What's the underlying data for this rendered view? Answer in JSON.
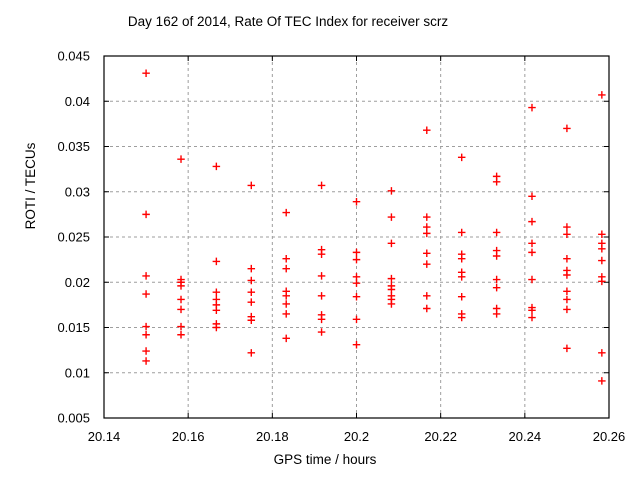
{
  "title": "Day 162 of 2014, Rate Of TEC Index for receiver scrz",
  "chart_data": {
    "type": "scatter",
    "title": "Day 162 of 2014, Rate Of TEC Index for receiver scrz",
    "xlabel": "GPS time / hours",
    "ylabel": "ROTI / TECUs",
    "xlim": [
      20.14,
      20.26
    ],
    "ylim": [
      0.005,
      0.045
    ],
    "xticks": [
      20.14,
      20.16,
      20.18,
      20.2,
      20.22,
      20.24,
      20.26
    ],
    "xtick_labels": [
      "20.14",
      "20.16",
      "20.18",
      "20.2",
      "20.22",
      "20.24",
      "20.26"
    ],
    "yticks": [
      0.005,
      0.01,
      0.015,
      0.02,
      0.025,
      0.03,
      0.035,
      0.04,
      0.045
    ],
    "ytick_labels": [
      "0.005",
      "0.01",
      "0.015",
      "0.02",
      "0.025",
      "0.03",
      "0.035",
      "0.04",
      "0.045"
    ],
    "grid": true,
    "legend": "none",
    "marker": {
      "shape": "plus",
      "color": "#ff0000",
      "size": 7.5,
      "stroke_width": 1.4
    },
    "frame_color": "#000000",
    "grid_color": "#9e9e9e",
    "points": [
      [
        20.15,
        0.0431
      ],
      [
        20.15,
        0.0275
      ],
      [
        20.15,
        0.0207
      ],
      [
        20.15,
        0.0187
      ],
      [
        20.15,
        0.0151
      ],
      [
        20.15,
        0.0142
      ],
      [
        20.15,
        0.0124
      ],
      [
        20.15,
        0.0113
      ],
      [
        20.1583,
        0.0336
      ],
      [
        20.1583,
        0.0203
      ],
      [
        20.1583,
        0.02
      ],
      [
        20.1583,
        0.0196
      ],
      [
        20.1583,
        0.0181
      ],
      [
        20.1583,
        0.017
      ],
      [
        20.1583,
        0.0151
      ],
      [
        20.1583,
        0.0142
      ],
      [
        20.1667,
        0.0328
      ],
      [
        20.1667,
        0.0223
      ],
      [
        20.1667,
        0.0189
      ],
      [
        20.1667,
        0.0181
      ],
      [
        20.1667,
        0.0175
      ],
      [
        20.1667,
        0.0169
      ],
      [
        20.1667,
        0.0154
      ],
      [
        20.1667,
        0.015
      ],
      [
        20.175,
        0.0307
      ],
      [
        20.175,
        0.0215
      ],
      [
        20.175,
        0.0202
      ],
      [
        20.175,
        0.0189
      ],
      [
        20.175,
        0.0178
      ],
      [
        20.175,
        0.0162
      ],
      [
        20.175,
        0.0158
      ],
      [
        20.175,
        0.0122
      ],
      [
        20.1833,
        0.0277
      ],
      [
        20.1833,
        0.0226
      ],
      [
        20.1833,
        0.0215
      ],
      [
        20.1833,
        0.019
      ],
      [
        20.1833,
        0.0185
      ],
      [
        20.1833,
        0.0176
      ],
      [
        20.1833,
        0.0165
      ],
      [
        20.1833,
        0.0138
      ],
      [
        20.1917,
        0.0307
      ],
      [
        20.1917,
        0.0236
      ],
      [
        20.1917,
        0.0231
      ],
      [
        20.1917,
        0.0207
      ],
      [
        20.1917,
        0.0185
      ],
      [
        20.1917,
        0.0164
      ],
      [
        20.1917,
        0.0159
      ],
      [
        20.1917,
        0.0145
      ],
      [
        20.2,
        0.0289
      ],
      [
        20.2,
        0.0233
      ],
      [
        20.2,
        0.0225
      ],
      [
        20.2,
        0.0206
      ],
      [
        20.2,
        0.0199
      ],
      [
        20.2,
        0.0184
      ],
      [
        20.2,
        0.0159
      ],
      [
        20.2,
        0.0131
      ],
      [
        20.2083,
        0.0301
      ],
      [
        20.2083,
        0.0272
      ],
      [
        20.2083,
        0.0243
      ],
      [
        20.2083,
        0.0204
      ],
      [
        20.2083,
        0.0196
      ],
      [
        20.2083,
        0.0192
      ],
      [
        20.2083,
        0.0185
      ],
      [
        20.2083,
        0.0181
      ],
      [
        20.2083,
        0.0176
      ],
      [
        20.2167,
        0.0368
      ],
      [
        20.2167,
        0.0272
      ],
      [
        20.2167,
        0.0261
      ],
      [
        20.2167,
        0.0254
      ],
      [
        20.2167,
        0.0232
      ],
      [
        20.2167,
        0.022
      ],
      [
        20.2167,
        0.0185
      ],
      [
        20.2167,
        0.0171
      ],
      [
        20.225,
        0.0338
      ],
      [
        20.225,
        0.0255
      ],
      [
        20.225,
        0.0231
      ],
      [
        20.225,
        0.0226
      ],
      [
        20.225,
        0.0211
      ],
      [
        20.225,
        0.0206
      ],
      [
        20.225,
        0.0184
      ],
      [
        20.225,
        0.0165
      ],
      [
        20.225,
        0.0161
      ],
      [
        20.2333,
        0.0317
      ],
      [
        20.2333,
        0.0311
      ],
      [
        20.2333,
        0.0255
      ],
      [
        20.2333,
        0.0235
      ],
      [
        20.2333,
        0.0229
      ],
      [
        20.2333,
        0.0203
      ],
      [
        20.2333,
        0.0194
      ],
      [
        20.2333,
        0.0171
      ],
      [
        20.2333,
        0.0165
      ],
      [
        20.2417,
        0.0393
      ],
      [
        20.2417,
        0.0295
      ],
      [
        20.2417,
        0.0267
      ],
      [
        20.2417,
        0.0243
      ],
      [
        20.2417,
        0.0233
      ],
      [
        20.2417,
        0.0203
      ],
      [
        20.2417,
        0.0172
      ],
      [
        20.2417,
        0.0169
      ],
      [
        20.2417,
        0.0161
      ],
      [
        20.25,
        0.037
      ],
      [
        20.25,
        0.0261
      ],
      [
        20.25,
        0.0253
      ],
      [
        20.25,
        0.0226
      ],
      [
        20.25,
        0.0213
      ],
      [
        20.25,
        0.0208
      ],
      [
        20.25,
        0.019
      ],
      [
        20.25,
        0.0181
      ],
      [
        20.25,
        0.017
      ],
      [
        20.25,
        0.0127
      ],
      [
        20.2583,
        0.0407
      ],
      [
        20.2583,
        0.0253
      ],
      [
        20.2583,
        0.0243
      ],
      [
        20.2583,
        0.0237
      ],
      [
        20.2583,
        0.0224
      ],
      [
        20.2583,
        0.0206
      ],
      [
        20.2583,
        0.0201
      ],
      [
        20.2583,
        0.0122
      ],
      [
        20.2583,
        0.0091
      ]
    ]
  }
}
